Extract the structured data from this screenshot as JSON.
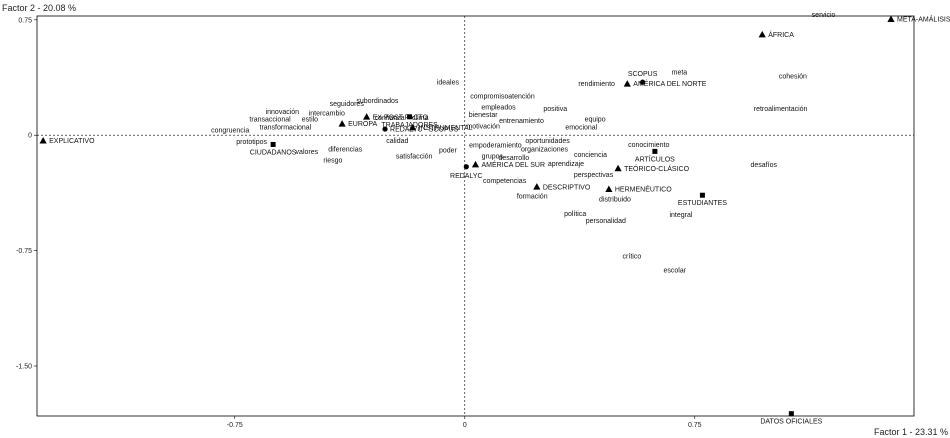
{
  "chart_data": {
    "type": "scatter",
    "title": "",
    "xlabel": "Factor 1  -  23.31 %",
    "ylabel": "Factor 2  -  20.08 %",
    "xlim": [
      -1.395,
      1.465
    ],
    "ylim": [
      -1.825,
      0.775
    ],
    "x_ticks": [
      -0.75,
      0,
      0.75
    ],
    "x_tick_labels": [
      "-0.75",
      "0",
      "0.75"
    ],
    "y_ticks": [
      0.75,
      0,
      -0.75,
      -1.5
    ],
    "y_tick_labels": [
      "0.75",
      "0",
      "-0.75",
      "-1.50"
    ],
    "grid": false,
    "origin_lines": "dashed",
    "point_groups": [
      {
        "marker": "triangle",
        "points": [
          {
            "label": "META-AMÁLISIS",
            "x": 1.39,
            "y": 0.755
          },
          {
            "label": "ÁFRICA",
            "x": 0.97,
            "y": 0.655
          },
          {
            "label": "AMÉRICA DEL NORTE",
            "x": 0.53,
            "y": 0.335
          },
          {
            "label": "EX POST FACTO",
            "x": -0.32,
            "y": 0.12
          },
          {
            "label": "EUROPA",
            "x": -0.4,
            "y": 0.075
          },
          {
            "label": "INSTRUMENTAL",
            "x": -0.17,
            "y": 0.05
          },
          {
            "label": "EXPLICATIVO",
            "x": -1.375,
            "y": -0.035
          },
          {
            "label": "AMÉRICA DEL SUR",
            "x": 0.035,
            "y": -0.19
          },
          {
            "label": "TEÓRICO-CLÁSICO",
            "x": 0.5,
            "y": -0.215
          },
          {
            "label": "DESCRIPTIVO",
            "x": 0.235,
            "y": -0.335
          },
          {
            "label": "HERMENÉUTICO",
            "x": 0.47,
            "y": -0.35
          }
        ]
      },
      {
        "marker": "circle",
        "points": [
          {
            "label": "SCOPUS",
            "x": 0.58,
            "y": 0.345
          },
          {
            "label": "REDALYC - SCOPUS",
            "x": -0.26,
            "y": 0.04
          },
          {
            "label": "REDALYC",
            "x": 0.005,
            "y": -0.205
          }
        ]
      },
      {
        "marker": "square",
        "points": [
          {
            "label": "TRABAJADORES",
            "x": -0.18,
            "y": 0.12
          },
          {
            "label": "CIUDADANOS",
            "x": -0.625,
            "y": -0.06
          },
          {
            "label": "ARTÍCULOS",
            "x": 0.62,
            "y": -0.105
          },
          {
            "label": "ESTUDIANTES",
            "x": 0.775,
            "y": -0.39
          },
          {
            "label": "DATOS OFICIALES",
            "x": 1.065,
            "y": -1.81
          }
        ]
      },
      {
        "marker": "none",
        "points": [
          {
            "label": "servicio",
            "x": 1.17,
            "y": 0.785
          },
          {
            "label": "meta",
            "x": 0.7,
            "y": 0.41
          },
          {
            "label": "cohesión",
            "x": 1.07,
            "y": 0.385
          },
          {
            "label": "rendimiento",
            "x": 0.43,
            "y": 0.335
          },
          {
            "label": "ideales",
            "x": -0.055,
            "y": 0.345
          },
          {
            "label": "compromiso",
            "x": 0.08,
            "y": 0.255
          },
          {
            "label": "atención",
            "x": 0.185,
            "y": 0.255
          },
          {
            "label": "subordinados",
            "x": -0.285,
            "y": 0.225
          },
          {
            "label": "seguidores",
            "x": -0.385,
            "y": 0.205
          },
          {
            "label": "empleados",
            "x": 0.11,
            "y": 0.185
          },
          {
            "label": "positiva",
            "x": 0.295,
            "y": 0.175
          },
          {
            "label": "retroalimentación",
            "x": 1.03,
            "y": 0.175
          },
          {
            "label": "innovación",
            "x": -0.595,
            "y": 0.155
          },
          {
            "label": "intercambio",
            "x": -0.45,
            "y": 0.145
          },
          {
            "label": "bienestar",
            "x": 0.06,
            "y": 0.135
          },
          {
            "label": "clima",
            "x": -0.145,
            "y": 0.115
          },
          {
            "label": "confianza",
            "x": -0.245,
            "y": 0.115
          },
          {
            "label": "transaccional",
            "x": -0.635,
            "y": 0.105
          },
          {
            "label": "estilo",
            "x": -0.505,
            "y": 0.105
          },
          {
            "label": "equipo",
            "x": 0.425,
            "y": 0.105
          },
          {
            "label": "entrenamiento",
            "x": 0.185,
            "y": 0.095
          },
          {
            "label": "motivación",
            "x": 0.06,
            "y": 0.06
          },
          {
            "label": "emocional",
            "x": 0.38,
            "y": 0.055
          },
          {
            "label": "transformacional",
            "x": -0.585,
            "y": 0.055
          },
          {
            "label": "congruencia",
            "x": -0.765,
            "y": 0.035
          },
          {
            "label": "calidad",
            "x": -0.22,
            "y": -0.035
          },
          {
            "label": "prototipos",
            "x": -0.695,
            "y": -0.04
          },
          {
            "label": "oportunidades",
            "x": 0.27,
            "y": -0.035
          },
          {
            "label": "conocimiento",
            "x": 0.6,
            "y": -0.06
          },
          {
            "label": "empoderamiento",
            "x": 0.1,
            "y": -0.065
          },
          {
            "label": "organizaciones",
            "x": 0.26,
            "y": -0.09
          },
          {
            "label": "poder",
            "x": -0.055,
            "y": -0.095
          },
          {
            "label": "diferencias",
            "x": -0.39,
            "y": -0.09
          },
          {
            "label": "valores",
            "x": -0.515,
            "y": -0.105
          },
          {
            "label": "conciencia",
            "x": 0.41,
            "y": -0.125
          },
          {
            "label": "grupos",
            "x": 0.09,
            "y": -0.135
          },
          {
            "label": "desarrollo",
            "x": 0.16,
            "y": -0.145
          },
          {
            "label": "satisfacción",
            "x": -0.165,
            "y": -0.135
          },
          {
            "label": "riesgo",
            "x": -0.43,
            "y": -0.16
          },
          {
            "label": "aprendizaje",
            "x": 0.33,
            "y": -0.185
          },
          {
            "label": "desafíos",
            "x": 0.975,
            "y": -0.19
          },
          {
            "label": "perspectivas",
            "x": 0.42,
            "y": -0.255
          },
          {
            "label": "competencias",
            "x": 0.13,
            "y": -0.295
          },
          {
            "label": "formación",
            "x": 0.22,
            "y": -0.395
          },
          {
            "label": "distribuido",
            "x": 0.49,
            "y": -0.415
          },
          {
            "label": "política",
            "x": 0.36,
            "y": -0.51
          },
          {
            "label": "integral",
            "x": 0.705,
            "y": -0.515
          },
          {
            "label": "personalidad",
            "x": 0.46,
            "y": -0.555
          },
          {
            "label": "crítico",
            "x": 0.545,
            "y": -0.785
          },
          {
            "label": "escolar",
            "x": 0.685,
            "y": -0.875
          }
        ]
      }
    ]
  }
}
